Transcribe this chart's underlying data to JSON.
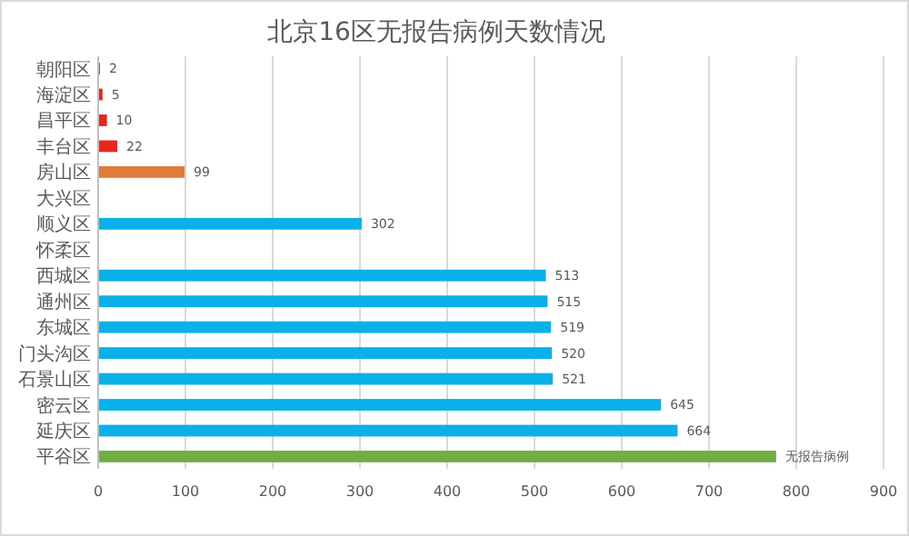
{
  "chart_data": {
    "type": "bar",
    "orientation": "horizontal",
    "title": "北京16区无报告病例天数情况",
    "categories": [
      "朝阳区",
      "海淀区",
      "昌平区",
      "丰台区",
      "房山区",
      "大兴区",
      "顺义区",
      "怀柔区",
      "西城区",
      "通州区",
      "东城区",
      "门头沟区",
      "石景山区",
      "密云区",
      "延庆区",
      "平谷区"
    ],
    "values": [
      2,
      5,
      10,
      22,
      99,
      null,
      302,
      null,
      513,
      515,
      519,
      520,
      521,
      645,
      664,
      777
    ],
    "colors": [
      "#e8251f",
      "#e8251f",
      "#e8251f",
      "#e8251f",
      "#e07b39",
      null,
      "#0ab0e8",
      null,
      "#0ab0e8",
      "#0ab0e8",
      "#0ab0e8",
      "#0ab0e8",
      "#0ab0e8",
      "#0ab0e8",
      "#0ab0e8",
      "#70ad47"
    ],
    "value_labels": [
      "2",
      "5",
      "10",
      "22",
      "99",
      null,
      "302",
      null,
      "513",
      "515",
      "519",
      "520",
      "521",
      "645",
      "664",
      "无报告病例"
    ],
    "xlim": [
      0,
      900
    ],
    "xticks": [
      0,
      100,
      200,
      300,
      400,
      500,
      600,
      700,
      800,
      900
    ],
    "grid": "x"
  }
}
